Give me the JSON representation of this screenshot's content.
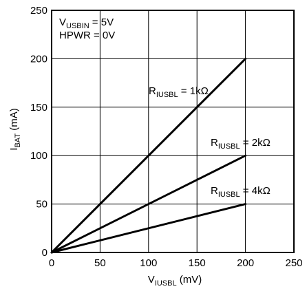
{
  "chart_data": {
    "type": "line",
    "xlabel": {
      "main": "V",
      "sub": "IUSBL",
      "unit": " (mV)"
    },
    "ylabel": {
      "main": "I",
      "sub": "BAT",
      "unit": " (mA)"
    },
    "xlim": [
      0,
      250
    ],
    "ylim": [
      0,
      250
    ],
    "x_ticks": [
      "0",
      "50",
      "100",
      "150",
      "200",
      "250"
    ],
    "y_ticks": [
      "0",
      "50",
      "100",
      "150",
      "200",
      "250"
    ],
    "grid": true,
    "conditions": [
      {
        "main": "V",
        "sub": "USBIN",
        "rest": " = 5V"
      },
      {
        "main": "HPWR = 0V",
        "sub": "",
        "rest": ""
      }
    ],
    "series": [
      {
        "main": "R",
        "sub": "IUSBL",
        "rest": " = 1kΩ",
        "x": [
          0,
          200
        ],
        "y": [
          0,
          200
        ]
      },
      {
        "main": "R",
        "sub": "IUSBL",
        "rest": " = 2kΩ",
        "x": [
          0,
          200
        ],
        "y": [
          0,
          100
        ]
      },
      {
        "main": "R",
        "sub": "IUSBL",
        "rest": " = 4kΩ",
        "x": [
          0,
          200
        ],
        "y": [
          0,
          50
        ]
      }
    ]
  }
}
